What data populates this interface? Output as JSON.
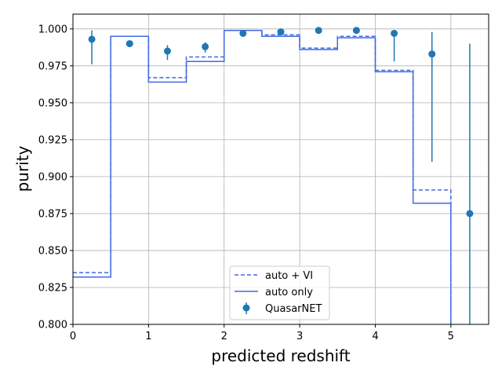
{
  "chart_data": {
    "type": "step+errorbar",
    "xlabel": "predicted redshift",
    "ylabel": "purity",
    "xlim": [
      0,
      5.5
    ],
    "ylim": [
      0.8,
      1.01
    ],
    "xticks": [
      0,
      1,
      2,
      3,
      4,
      5
    ],
    "yticks": [
      0.8,
      0.825,
      0.85,
      0.875,
      0.9,
      0.925,
      0.95,
      0.975,
      1.0
    ],
    "xtick_labels": [
      "0",
      "1",
      "2",
      "3",
      "4",
      "5"
    ],
    "ytick_labels": [
      "0.800",
      "0.825",
      "0.850",
      "0.875",
      "0.900",
      "0.925",
      "0.950",
      "0.975",
      "1.000"
    ],
    "grid": true,
    "legend_position": "lower-center",
    "colors": {
      "steps": "#4169e1",
      "points": "#1f77b4"
    },
    "bin_edges": [
      0,
      0.5,
      1,
      1.5,
      2,
      2.5,
      3,
      3.5,
      4,
      4.5,
      5
    ],
    "series": [
      {
        "name": "auto + VI",
        "style": "dashed-step",
        "values": [
          0.835,
          0.995,
          0.967,
          0.981,
          0.999,
          0.996,
          0.987,
          0.995,
          0.972,
          0.891
        ]
      },
      {
        "name": "auto only",
        "style": "solid-step",
        "values": [
          0.832,
          0.995,
          0.964,
          0.978,
          0.999,
          0.995,
          0.986,
          0.994,
          0.971,
          0.882
        ]
      },
      {
        "name": "QuasarNET",
        "style": "errorbar",
        "x": [
          0.25,
          0.75,
          1.25,
          1.75,
          2.25,
          2.75,
          3.25,
          3.75,
          4.25,
          4.75,
          5.25
        ],
        "y": [
          0.993,
          0.99,
          0.985,
          0.988,
          0.997,
          0.998,
          0.999,
          0.999,
          0.997,
          0.983,
          0.875
        ],
        "yerr_low": [
          0.017,
          0.002,
          0.006,
          0.004,
          0.001,
          0.001,
          0.001,
          0.001,
          0.019,
          0.073,
          0.075
        ],
        "yerr_high": [
          0.006,
          0.002,
          0.004,
          0.003,
          0.001,
          0.001,
          0.0005,
          0.001,
          0.002,
          0.015,
          0.115
        ]
      }
    ]
  }
}
